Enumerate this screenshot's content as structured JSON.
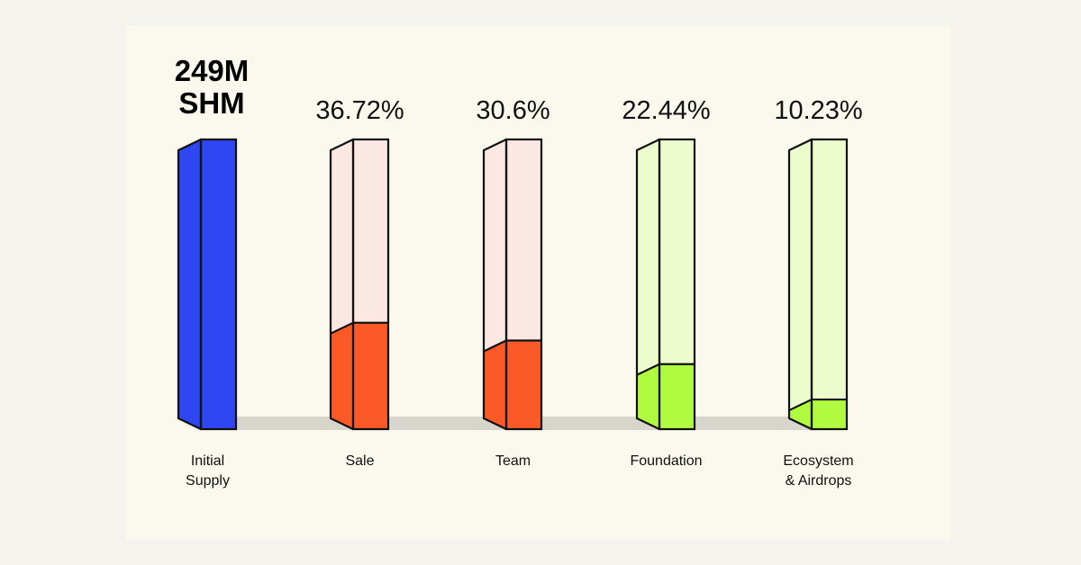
{
  "colors": {
    "outer_background": "#f4f3ee",
    "card_background": "#fbf9ee",
    "shadow": "#d8d6cc",
    "outline": "#111111"
  },
  "chart_data": {
    "type": "bar",
    "title": "",
    "total_label_lines": [
      "249M",
      "SHM"
    ],
    "ylim": [
      0,
      100
    ],
    "categories": [
      {
        "label_lines": [
          "Initial",
          "Supply"
        ],
        "value": 100,
        "value_label": "",
        "fill_color": "#2f47f2",
        "empty_color": "#2f47f2"
      },
      {
        "label_lines": [
          "Sale"
        ],
        "value": 36.72,
        "value_label": "36.72%",
        "fill_color": "#fb5a27",
        "empty_color": "#fce8e3"
      },
      {
        "label_lines": [
          "Team"
        ],
        "value": 30.6,
        "value_label": "30.6%",
        "fill_color": "#fb5a27",
        "empty_color": "#fce8e3"
      },
      {
        "label_lines": [
          "Foundation"
        ],
        "value": 22.44,
        "value_label": "22.44%",
        "fill_color": "#b0fb3f",
        "empty_color": "#ecfccc"
      },
      {
        "label_lines": [
          "Ecosystem",
          "& Airdrops"
        ],
        "value": 10.23,
        "value_label": "10.23%",
        "fill_color": "#b0fb3f",
        "empty_color": "#ecfccc"
      }
    ]
  }
}
